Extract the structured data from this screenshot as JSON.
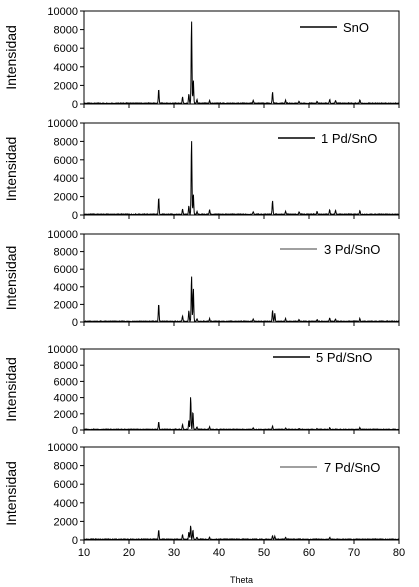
{
  "chart_data": {
    "type": "line",
    "xlabel": "Theta",
    "ylabel": "Intensidad",
    "xlim": [
      10,
      80
    ],
    "ylim": [
      0,
      10000
    ],
    "x_ticks": [
      "10",
      "20",
      "30",
      "40",
      "50",
      "60",
      "70",
      "80"
    ],
    "y_ticks": [
      "0",
      "2000",
      "4000",
      "6000",
      "8000",
      "10000"
    ],
    "legend_placement": "top-right",
    "line_color": "#000000",
    "panels": [
      {
        "name": "SnO",
        "peaks": [
          [
            26.6,
            1500
          ],
          [
            31.9,
            700
          ],
          [
            33.3,
            1000
          ],
          [
            33.9,
            9000
          ],
          [
            34.3,
            2500
          ],
          [
            35.1,
            400
          ],
          [
            37.9,
            300
          ],
          [
            47.6,
            300
          ],
          [
            51.9,
            1200
          ],
          [
            54.8,
            300
          ],
          [
            57.8,
            200
          ],
          [
            61.8,
            200
          ],
          [
            64.6,
            400
          ],
          [
            65.9,
            300
          ],
          [
            71.3,
            400
          ]
        ]
      },
      {
        "name": "1 Pd/SnO",
        "peaks": [
          [
            26.6,
            1800
          ],
          [
            31.9,
            600
          ],
          [
            33.3,
            900
          ],
          [
            33.9,
            8200
          ],
          [
            34.3,
            2200
          ],
          [
            35.1,
            300
          ],
          [
            37.9,
            500
          ],
          [
            47.6,
            300
          ],
          [
            51.9,
            1500
          ],
          [
            54.8,
            300
          ],
          [
            57.8,
            300
          ],
          [
            61.8,
            300
          ],
          [
            64.6,
            500
          ],
          [
            65.9,
            400
          ],
          [
            71.3,
            400
          ]
        ]
      },
      {
        "name": "3 Pd/SnO",
        "peaks": [
          [
            26.6,
            2000
          ],
          [
            31.9,
            600
          ],
          [
            33.3,
            1200
          ],
          [
            33.9,
            5200
          ],
          [
            34.3,
            3800
          ],
          [
            35.1,
            300
          ],
          [
            37.9,
            300
          ],
          [
            47.6,
            300
          ],
          [
            51.9,
            1300
          ],
          [
            52.4,
            900
          ],
          [
            54.8,
            300
          ],
          [
            57.8,
            200
          ],
          [
            61.8,
            200
          ],
          [
            64.6,
            400
          ],
          [
            65.9,
            300
          ],
          [
            71.3,
            300
          ]
        ]
      },
      {
        "name": "5 Pd/SnO",
        "peaks": [
          [
            26.6,
            900
          ],
          [
            31.9,
            600
          ],
          [
            33.3,
            1100
          ],
          [
            33.7,
            4100
          ],
          [
            34.2,
            2200
          ],
          [
            35.1,
            300
          ],
          [
            37.9,
            300
          ],
          [
            47.6,
            200
          ],
          [
            51.9,
            400
          ],
          [
            54.8,
            200
          ],
          [
            57.8,
            100
          ],
          [
            61.8,
            100
          ],
          [
            64.6,
            200
          ],
          [
            71.3,
            200
          ]
        ]
      },
      {
        "name": "7 Pd/SnO",
        "peaks": [
          [
            26.6,
            1000
          ],
          [
            31.9,
            500
          ],
          [
            33.3,
            800
          ],
          [
            33.7,
            1500
          ],
          [
            34.2,
            1000
          ],
          [
            35.1,
            200
          ],
          [
            37.9,
            200
          ],
          [
            51.9,
            400
          ],
          [
            52.4,
            300
          ],
          [
            54.8,
            200
          ],
          [
            64.6,
            200
          ]
        ]
      }
    ]
  }
}
